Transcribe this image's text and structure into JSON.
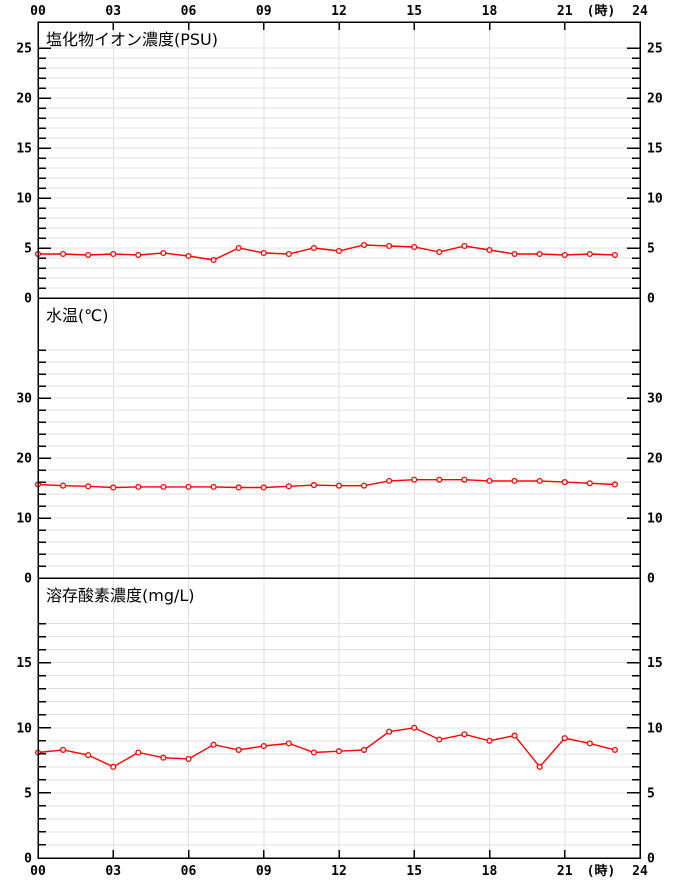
{
  "page": {
    "background": "#ffffff"
  },
  "colors": {
    "line": "#ff0000",
    "marker_fill": "#ffffff",
    "grid": "#e0e0e0",
    "axis": "#000000",
    "text": "#000000"
  },
  "x_axis": {
    "range": [
      0,
      24
    ],
    "tick_step": 3,
    "tick_labels": [
      "00",
      "03",
      "06",
      "09",
      "12",
      "15",
      "18",
      "21",
      "24"
    ],
    "unit_label": "(時)"
  },
  "chart_data": [
    {
      "type": "line",
      "title": "塩化物イオン濃度(PSU)",
      "xlabel": "(時)",
      "ylabel": "PSU",
      "x": [
        0,
        1,
        2,
        3,
        4,
        5,
        6,
        7,
        8,
        9,
        10,
        11,
        12,
        13,
        14,
        15,
        16,
        17,
        18,
        19,
        20,
        21,
        22,
        23
      ],
      "values": [
        4.4,
        4.4,
        4.3,
        4.4,
        4.3,
        4.5,
        4.2,
        3.8,
        5.0,
        4.5,
        4.4,
        5.0,
        4.7,
        5.3,
        5.2,
        5.1,
        4.6,
        5.2,
        4.8,
        4.4,
        4.4,
        4.3,
        4.4,
        4.3
      ],
      "ylim": [
        0,
        27.6
      ],
      "ytick_labels": [
        0,
        5,
        10,
        15,
        20,
        25
      ],
      "ytick_minor_step": 1,
      "ytick_max": 25,
      "grid": true,
      "legend": "none"
    },
    {
      "type": "line",
      "title": "水温(℃)",
      "xlabel": "(時)",
      "ylabel": "℃",
      "x": [
        0,
        1,
        2,
        3,
        4,
        5,
        6,
        7,
        8,
        9,
        10,
        11,
        12,
        13,
        14,
        15,
        16,
        17,
        18,
        19,
        20,
        21,
        22,
        23
      ],
      "values": [
        15.6,
        15.4,
        15.3,
        15.1,
        15.2,
        15.2,
        15.2,
        15.2,
        15.1,
        15.1,
        15.3,
        15.5,
        15.4,
        15.4,
        16.2,
        16.4,
        16.4,
        16.4,
        16.2,
        16.2,
        16.2,
        16.0,
        15.8,
        15.6
      ],
      "ylim": [
        0,
        46.7
      ],
      "ytick_labels": [
        0,
        10,
        20,
        30
      ],
      "ytick_minor_step": 2,
      "ytick_max": 38,
      "grid": true,
      "legend": "none"
    },
    {
      "type": "line",
      "title": "溶存酸素濃度(mg/L)",
      "xlabel": "(時)",
      "ylabel": "mg/L",
      "x": [
        0,
        1,
        2,
        3,
        4,
        5,
        6,
        7,
        8,
        9,
        10,
        11,
        12,
        13,
        14,
        15,
        16,
        17,
        18,
        19,
        20,
        21,
        22,
        23
      ],
      "values": [
        8.1,
        8.3,
        7.9,
        7.0,
        8.1,
        7.7,
        7.6,
        8.7,
        8.3,
        8.6,
        8.8,
        8.1,
        8.2,
        8.3,
        9.7,
        10.0,
        9.1,
        9.5,
        9.0,
        9.4,
        7.0,
        9.2,
        8.8,
        8.3
      ],
      "ylim": [
        0,
        21.5
      ],
      "ytick_labels": [
        0,
        5,
        10,
        15
      ],
      "ytick_minor_step": 1,
      "ytick_max": 18,
      "grid": true,
      "legend": "none"
    }
  ]
}
